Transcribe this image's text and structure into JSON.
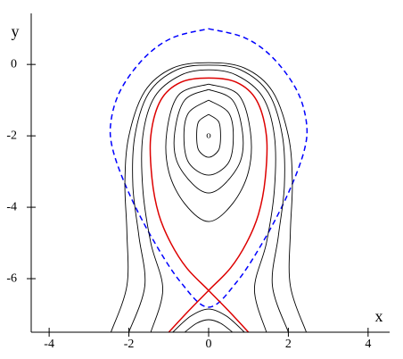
{
  "chart_data": {
    "type": "line",
    "xlabel": "x",
    "ylabel": "y",
    "xlim": [
      -4.45,
      4.54
    ],
    "ylim": [
      -7.5,
      1.43
    ],
    "xticks": [
      -4,
      -2,
      0,
      2,
      4
    ],
    "yticks": [
      -6,
      -4,
      -2,
      0
    ],
    "annotations": [
      {
        "text": "o",
        "x": 0,
        "y": -2
      }
    ],
    "series": [
      {
        "color": "#0000ff",
        "dashed": true,
        "x": [
          0,
          0.9,
          1.6,
          2.2,
          2.45,
          2.4,
          2.0,
          1.4,
          0.7,
          0,
          -0.7,
          -1.4,
          -2.0,
          -2.4,
          -2.45,
          -2.2,
          -1.6,
          -0.9,
          0
        ],
        "values": [
          1.0,
          0.75,
          0.2,
          -0.7,
          -1.6,
          -2.4,
          -3.6,
          -4.9,
          -6.1,
          -6.8,
          -6.1,
          -4.9,
          -3.6,
          -2.4,
          -1.6,
          -0.7,
          0.2,
          0.75,
          1.0
        ]
      },
      {
        "color": "#000000",
        "x": [
          0,
          0.25,
          0.3,
          0.25,
          0,
          -0.25,
          -0.3,
          -0.25,
          0
        ],
        "values": [
          -1.4,
          -1.6,
          -2,
          -2.4,
          -2.6,
          -2.4,
          -2,
          -1.6,
          -1.4
        ]
      },
      {
        "color": "#000000",
        "x": [
          0,
          0.5,
          0.62,
          0.5,
          0,
          -0.5,
          -0.62,
          -0.5,
          0
        ],
        "values": [
          -1.0,
          -1.35,
          -2,
          -2.75,
          -3.1,
          -2.75,
          -2,
          -1.35,
          -1.0
        ]
      },
      {
        "color": "#000000",
        "x": [
          0,
          0.6,
          0.85,
          0.8,
          0.4,
          0,
          -0.4,
          -0.8,
          -0.85,
          -0.6,
          0
        ],
        "values": [
          -0.7,
          -1.0,
          -1.9,
          -2.7,
          -3.35,
          -3.6,
          -3.35,
          -2.7,
          -1.9,
          -1.0,
          -0.7
        ]
      },
      {
        "color": "#000000",
        "x": [
          0,
          0.75,
          1.05,
          1.0,
          0.6,
          0,
          -0.6,
          -1.0,
          -1.05,
          -0.75,
          0
        ],
        "values": [
          -0.55,
          -0.85,
          -1.9,
          -3.0,
          -3.9,
          -4.4,
          -3.9,
          -3.0,
          -1.9,
          -0.85,
          -0.55
        ]
      },
      {
        "color": "#000000",
        "x": [
          -1.45,
          -1.15,
          -1.45,
          -1.65,
          -1.65,
          -1.35,
          -0.7,
          0,
          0.7,
          1.35,
          1.65,
          1.65,
          1.45,
          1.15,
          1.45
        ],
        "values": [
          -7.5,
          -6.3,
          -5.0,
          -3.5,
          -2.0,
          -0.9,
          -0.3,
          -0.15,
          -0.3,
          -0.9,
          -2.0,
          -3.5,
          -5.0,
          -6.3,
          -7.5
        ]
      },
      {
        "color": "#000000",
        "x": [
          -2.0,
          -1.6,
          -1.75,
          -1.9,
          -1.85,
          -1.5,
          -0.8,
          0,
          0.8,
          1.5,
          1.85,
          1.9,
          1.75,
          1.6,
          2.0
        ],
        "values": [
          -7.5,
          -6.2,
          -4.8,
          -3.4,
          -2.0,
          -0.8,
          -0.15,
          -0.02,
          -0.15,
          -0.8,
          -2.0,
          -3.4,
          -4.8,
          -6.2,
          -7.5
        ]
      },
      {
        "color": "#000000",
        "x": [
          -2.45,
          -2.05,
          -2.05,
          -2.1,
          -2.0,
          -1.6,
          -0.9,
          0,
          0.9,
          1.6,
          2.0,
          2.1,
          2.05,
          2.05,
          2.45
        ],
        "values": [
          -7.5,
          -6.2,
          -4.7,
          -3.3,
          -2.0,
          -0.75,
          -0.1,
          0.05,
          -0.1,
          -0.75,
          -2.0,
          -3.3,
          -4.7,
          -6.2,
          -7.5
        ]
      },
      {
        "color": "#000000",
        "x": [
          -0.9,
          -0.45,
          0,
          0.45,
          0.9
        ],
        "values": [
          -7.5,
          -7.05,
          -6.85,
          -7.05,
          -7.5
        ]
      },
      {
        "color": "#000000",
        "x": [
          -0.6,
          -0.3,
          0,
          0.3,
          0.6
        ],
        "values": [
          -7.5,
          -7.25,
          -7.15,
          -7.25,
          -7.5
        ]
      },
      {
        "color": "#dd0000",
        "x": [
          -1,
          -0.5,
          0,
          0.55,
          0.95,
          1.25,
          1.42,
          1.45,
          1.2,
          0.7,
          0,
          -0.7,
          -1.2,
          -1.45,
          -1.42,
          -1.25,
          -0.95,
          -0.55,
          0,
          0.5,
          1
        ],
        "values": [
          -7.5,
          -6.9,
          -6.33,
          -5.7,
          -5.0,
          -4.2,
          -3.2,
          -2.0,
          -1.0,
          -0.5,
          -0.38,
          -0.5,
          -1.0,
          -2.0,
          -3.2,
          -4.2,
          -5.0,
          -5.7,
          -6.33,
          -6.9,
          -7.5
        ]
      }
    ]
  }
}
